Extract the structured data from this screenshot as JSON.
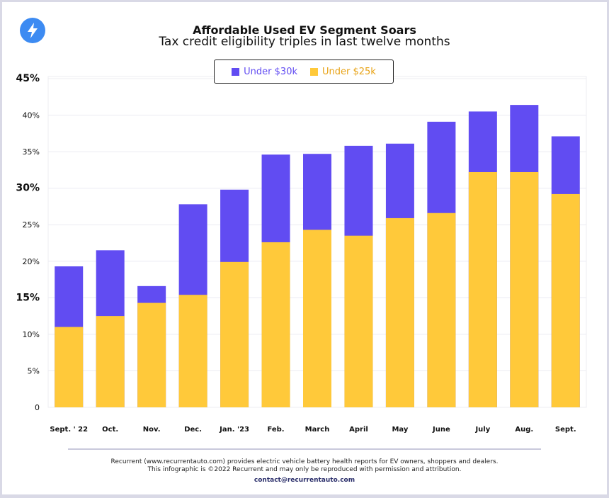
{
  "chart_data": {
    "type": "bar",
    "stacked": false,
    "overlay": true,
    "title": "Affordable Used EV Segment Soars",
    "subtitle": "Tax credit eligibility triples in last twelve months",
    "categories": [
      "Sept. ' 22",
      "Oct.",
      "Nov.",
      "Dec.",
      "Jan. '23",
      "Feb.",
      "March",
      "April",
      "May",
      "June",
      "July",
      "Aug.",
      "Sept."
    ],
    "series": [
      {
        "name": "Under $30k",
        "color": "#614cf2",
        "values": [
          19.3,
          21.5,
          16.6,
          27.8,
          29.8,
          34.6,
          34.7,
          35.8,
          36.1,
          39.1,
          40.5,
          41.4,
          37.1
        ]
      },
      {
        "name": "Under $25k",
        "color": "#ffc93a",
        "values": [
          11.0,
          12.5,
          14.3,
          15.4,
          19.9,
          22.6,
          24.3,
          23.5,
          25.9,
          26.6,
          32.2,
          32.2,
          29.2
        ]
      }
    ],
    "ylim": [
      0,
      45
    ],
    "yticks": [
      0,
      5,
      10,
      15,
      20,
      25,
      30,
      35,
      40,
      45
    ],
    "ytick_labels": [
      "0",
      "5%",
      "10%",
      "15%",
      "20%",
      "25%",
      "30%",
      "35%",
      "40%",
      "45%"
    ],
    "grid": true,
    "legend_position": "top-center"
  },
  "legend_text_colors": {
    "Under $30k": "#614cf2",
    "Under $25k": "#e8a317"
  },
  "logo_icon": "lightning-bolt-icon",
  "footer": {
    "line1": "Recurrent (www.recurrentauto.com) provides electric vehicle battery health reports for EV owners, shoppers and dealers.",
    "line2": "This infographic is ©2022 Recurrent and may only be reproduced with permission and attribution.",
    "contact": "contact@recurrentauto.com"
  }
}
